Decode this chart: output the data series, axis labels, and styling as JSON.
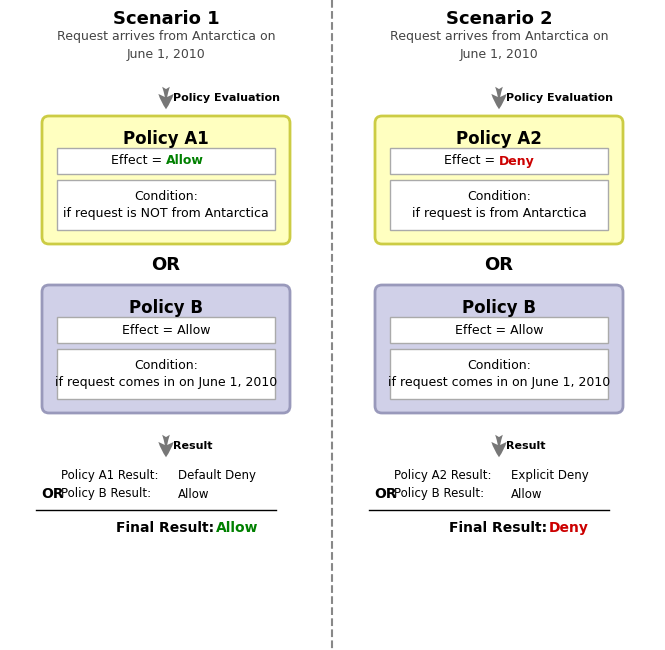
{
  "title1": "Scenario 1",
  "title2": "Scenario 2",
  "request_text": "Request arrives from Antarctica on\nJune 1, 2010",
  "policy_eval_label": "Policy Evaluation",
  "result_label": "Result",
  "or_label": "OR",
  "s1_policyA_title": "Policy A1",
  "s1_policyA_bg": "#FFFFC0",
  "s1_policyA_border": "#CCCC44",
  "s1_policyA_effect_value": "Allow",
  "s1_policyA_effect_color": "#008000",
  "s1_policyA_condition": "Condition:\nif request is NOT from Antarctica",
  "s2_policyA_title": "Policy A2",
  "s2_policyA_bg": "#FFFFC0",
  "s2_policyA_border": "#CCCC44",
  "s2_policyA_effect_value": "Deny",
  "s2_policyA_effect_color": "#CC0000",
  "s2_policyA_condition": "Condition:\nif request is from Antarctica",
  "policyB_title": "Policy B",
  "policyB_bg": "#D0D0E8",
  "policyB_border": "#9999BB",
  "policyB_effect_text": "Effect = Allow",
  "policyB_condition": "Condition:\nif request comes in on June 1, 2010",
  "s1_result1_label": "Policy A1 Result:",
  "s1_result1_value": "Default Deny",
  "s1_result2_label": "Policy B Result:",
  "s1_result2_value": "Allow",
  "s1_final_label": "Final Result:",
  "s1_final_value": "Allow",
  "s1_final_color": "#008000",
  "s2_result1_label": "Policy A2 Result:",
  "s2_result1_value": "Explicit Deny",
  "s2_result2_label": "Policy B Result:",
  "s2_result2_value": "Allow",
  "s2_final_label": "Final Result:",
  "s2_final_value": "Deny",
  "s2_final_color": "#CC0000",
  "divider_color": "#888888",
  "arrow_color": "#777777",
  "text_color": "#444444",
  "white": "#FFFFFF",
  "inner_border": "#AAAAAA",
  "black": "#000000"
}
